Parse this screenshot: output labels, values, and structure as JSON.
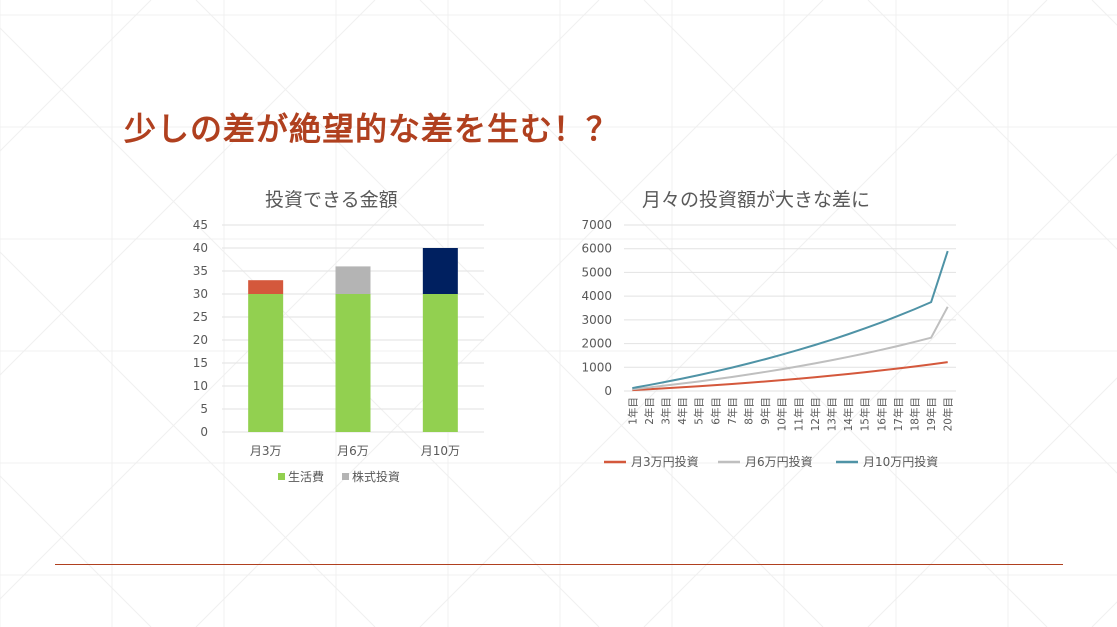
{
  "slide": {
    "title": "少しの差が絶望的な差を生む！？"
  },
  "colors": {
    "title": "#b0401f",
    "living": "#92d050",
    "invest3": "#d4583c",
    "invest6": "#b4b4b4",
    "invest10": "#002060",
    "line3": "#d4583c",
    "line6": "#bfbfbf",
    "line10": "#4f93a6"
  },
  "chart_data": [
    {
      "type": "bar",
      "title": "投資できる金額",
      "categories": [
        "月3万",
        "月6万",
        "月10万"
      ],
      "series": [
        {
          "name": "生活費",
          "values": [
            30,
            30,
            30
          ]
        },
        {
          "name": "株式投資",
          "values": [
            3,
            6,
            10
          ]
        }
      ],
      "ylim": [
        0,
        45
      ],
      "yticks": [
        "0",
        "5",
        "10",
        "15",
        "20",
        "25",
        "30",
        "35",
        "40",
        "45"
      ],
      "grid": true,
      "legend": "bottom",
      "stacked": true
    },
    {
      "type": "line",
      "title": "月々の投資額が大きな差に",
      "x": [
        "1年目",
        "2年目",
        "3年目",
        "4年目",
        "5年目",
        "6年目",
        "7年目",
        "8年目",
        "9年目",
        "10年目",
        "11年目",
        "12年目",
        "13年目",
        "14年目",
        "15年目",
        "16年目",
        "17年目",
        "18年目",
        "19年目",
        "20年目"
      ],
      "series": [
        {
          "name": "月3万円投資",
          "values": [
            37,
            75,
            115,
            157,
            201,
            247,
            296,
            348,
            402,
            459,
            519,
            582,
            648,
            718,
            791,
            868,
            949,
            1034,
            1124,
            1218
          ]
        },
        {
          "name": "月6万円投資",
          "values": [
            74,
            150,
            230,
            314,
            402,
            494,
            592,
            696,
            804,
            918,
            1038,
            1164,
            1296,
            1436,
            1582,
            1736,
            1898,
            2068,
            2248,
            3550
          ]
        },
        {
          "name": "月10万円投資",
          "values": [
            124,
            250,
            383,
            523,
            670,
            824,
            987,
            1160,
            1340,
            1530,
            1730,
            1940,
            2160,
            2393,
            2637,
            2893,
            3163,
            3447,
            3747,
            5900
          ]
        }
      ],
      "ylim": [
        0,
        7000
      ],
      "yticks": [
        "0",
        "1000",
        "2000",
        "3000",
        "4000",
        "5000",
        "6000",
        "7000"
      ],
      "grid": true,
      "legend": "bottom"
    }
  ]
}
